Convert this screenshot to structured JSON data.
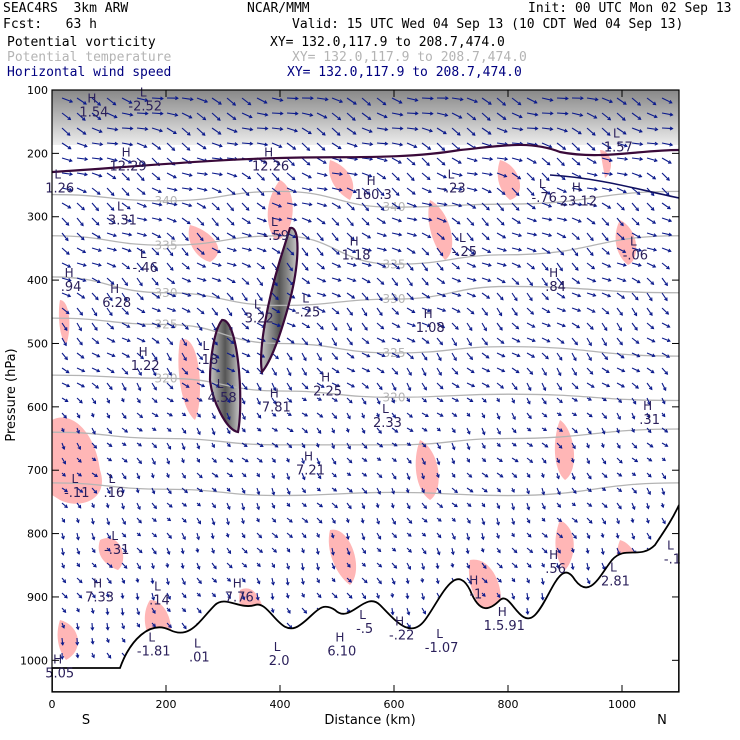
{
  "header": {
    "model": "SEAC4RS  3km ARW",
    "forecast": "Fcst:   63 h",
    "center": "NCAR/MMM",
    "init": "Init: 00 UTC Mon 02 Sep 13",
    "valid": "Valid: 15 UTC Wed 04 Sep 13 (10 CDT Wed 04 Sep 13)"
  },
  "fields": [
    {
      "label": "Potential vorticity",
      "xy": "XY= 132.0,117.9 to 208.7,474.0",
      "color": "#000000"
    },
    {
      "label": "Potential temperature",
      "xy": "XY= 132.0,117.9 to 208.7,474.0",
      "color": "#b4b4b4"
    },
    {
      "label": "Horizontal wind speed",
      "xy": "XY= 132.0,117.9 to 208.7,474.0",
      "color": "#000080"
    }
  ],
  "chart_data": {
    "type": "contour",
    "xlabel": "Distance (km)",
    "ylabel": "Pressure (hPa)",
    "xlim": [
      0,
      1100
    ],
    "ylim": [
      1050,
      100
    ],
    "x_ticks": [
      0,
      200,
      400,
      600,
      800,
      1000
    ],
    "y_ticks": [
      100,
      200,
      300,
      400,
      500,
      600,
      700,
      800,
      900,
      1000
    ],
    "side_labels": {
      "left": "S",
      "right": "N"
    },
    "colors": {
      "pv_contour": "#3a0a3a",
      "theta": "#b4b4b4",
      "wind": "#0b1a8c",
      "shade_pink": "#ffb6b6",
      "terrain": "#000000"
    },
    "theta_contours": [
      {
        "label": "340",
        "points": [
          [
            0,
            265
          ],
          [
            200,
            275
          ],
          [
            400,
            260
          ],
          [
            600,
            285
          ],
          [
            800,
            280
          ],
          [
            1100,
            260
          ]
        ]
      },
      {
        "label": "335",
        "points": [
          [
            0,
            330
          ],
          [
            200,
            345
          ],
          [
            400,
            330
          ],
          [
            600,
            375
          ],
          [
            800,
            360
          ],
          [
            1100,
            330
          ]
        ]
      },
      {
        "label": "330",
        "points": [
          [
            0,
            395
          ],
          [
            200,
            420
          ],
          [
            400,
            440
          ],
          [
            600,
            430
          ],
          [
            800,
            410
          ],
          [
            1100,
            420
          ]
        ]
      },
      {
        "label": "325",
        "points": [
          [
            0,
            460
          ],
          [
            200,
            470
          ],
          [
            400,
            500
          ],
          [
            600,
            515
          ],
          [
            800,
            505
          ],
          [
            1100,
            520
          ]
        ]
      },
      {
        "label": "320",
        "points": [
          [
            0,
            550
          ],
          [
            200,
            555
          ],
          [
            400,
            575
          ],
          [
            600,
            585
          ],
          [
            800,
            580
          ],
          [
            1100,
            590
          ]
        ]
      },
      {
        "label": "",
        "points": [
          [
            0,
            640
          ],
          [
            200,
            650
          ],
          [
            400,
            660
          ],
          [
            600,
            660
          ],
          [
            800,
            650
          ],
          [
            1100,
            635
          ]
        ]
      },
      {
        "label": "",
        "points": [
          [
            0,
            720
          ],
          [
            200,
            730
          ],
          [
            400,
            740
          ],
          [
            600,
            735
          ],
          [
            800,
            740
          ],
          [
            1100,
            720
          ]
        ]
      }
    ],
    "extrema": [
      {
        "x": 70,
        "p": 120,
        "kind": "H",
        "value": "1.54"
      },
      {
        "x": 160,
        "p": 110,
        "kind": "L",
        "value": "-2.52"
      },
      {
        "x": 130,
        "p": 205,
        "kind": "H",
        "value": "12.29"
      },
      {
        "x": 380,
        "p": 205,
        "kind": "H",
        "value": "12.26"
      },
      {
        "x": 10,
        "p": 240,
        "kind": "L",
        "value": "1.26"
      },
      {
        "x": 560,
        "p": 250,
        "kind": "H",
        "value": "160.3"
      },
      {
        "x": 700,
        "p": 240,
        "kind": "L",
        "value": "-.23"
      },
      {
        "x": 860,
        "p": 255,
        "kind": "L",
        "value": "-.76"
      },
      {
        "x": 920,
        "p": 260,
        "kind": "H",
        "value": "23.12"
      },
      {
        "x": 990,
        "p": 175,
        "kind": "L",
        "value": "1.57"
      },
      {
        "x": 120,
        "p": 290,
        "kind": "L",
        "value": "3.31"
      },
      {
        "x": 390,
        "p": 315,
        "kind": "L",
        "value": "-.59"
      },
      {
        "x": 530,
        "p": 345,
        "kind": "H",
        "value": "1.18"
      },
      {
        "x": 720,
        "p": 340,
        "kind": "L",
        "value": "-.25"
      },
      {
        "x": 1020,
        "p": 345,
        "kind": "L",
        "value": "-.06"
      },
      {
        "x": 160,
        "p": 365,
        "kind": "L",
        "value": "-.46"
      },
      {
        "x": 30,
        "p": 395,
        "kind": "H",
        "value": ".94"
      },
      {
        "x": 110,
        "p": 420,
        "kind": "H",
        "value": "6.28"
      },
      {
        "x": 445,
        "p": 435,
        "kind": "L",
        "value": "-.25"
      },
      {
        "x": 880,
        "p": 395,
        "kind": "H",
        "value": ".84"
      },
      {
        "x": 360,
        "p": 445,
        "kind": "L",
        "value": "3.22"
      },
      {
        "x": 660,
        "p": 460,
        "kind": "H",
        "value": "1.08"
      },
      {
        "x": 270,
        "p": 510,
        "kind": "L",
        "value": ".18"
      },
      {
        "x": 160,
        "p": 520,
        "kind": "H",
        "value": "1.22"
      },
      {
        "x": 480,
        "p": 560,
        "kind": "H",
        "value": "2.25"
      },
      {
        "x": 295,
        "p": 570,
        "kind": "L",
        "value": "4.58"
      },
      {
        "x": 390,
        "p": 585,
        "kind": "H",
        "value": "7.81"
      },
      {
        "x": 585,
        "p": 610,
        "kind": "L",
        "value": "2.33"
      },
      {
        "x": 1045,
        "p": 605,
        "kind": "H",
        "value": ".31"
      },
      {
        "x": 450,
        "p": 685,
        "kind": "H",
        "value": "7.21"
      },
      {
        "x": 40,
        "p": 720,
        "kind": "L",
        "value": "-.11"
      },
      {
        "x": 105,
        "p": 720,
        "kind": "L",
        "value": ".16"
      },
      {
        "x": 110,
        "p": 810,
        "kind": "L",
        "value": "-.31"
      },
      {
        "x": 80,
        "p": 885,
        "kind": "H",
        "value": "7.33"
      },
      {
        "x": 185,
        "p": 890,
        "kind": "L",
        "value": ".14"
      },
      {
        "x": 325,
        "p": 885,
        "kind": "H",
        "value": "7.76"
      },
      {
        "x": 880,
        "p": 840,
        "kind": "H",
        "value": ".56"
      },
      {
        "x": 985,
        "p": 860,
        "kind": "L",
        "value": "2.81"
      },
      {
        "x": 1085,
        "p": 825,
        "kind": "L",
        "value": "-.1"
      },
      {
        "x": 175,
        "p": 970,
        "kind": "L",
        "value": "-1.81"
      },
      {
        "x": 255,
        "p": 980,
        "kind": "L",
        "value": ".01"
      },
      {
        "x": 395,
        "p": 985,
        "kind": "L",
        "value": "2.0"
      },
      {
        "x": 505,
        "p": 970,
        "kind": "H",
        "value": "6.10"
      },
      {
        "x": 545,
        "p": 935,
        "kind": "L",
        "value": "-.5"
      },
      {
        "x": 610,
        "p": 945,
        "kind": "H",
        "value": "-.22"
      },
      {
        "x": 680,
        "p": 965,
        "kind": "L",
        "value": "-1.07"
      },
      {
        "x": 790,
        "p": 930,
        "kind": "H",
        "value": "1.5.91"
      },
      {
        "x": 740,
        "p": 880,
        "kind": "H",
        "value": "-1"
      },
      {
        "x": 10,
        "p": 1005,
        "kind": "H",
        "value": "5.05"
      }
    ]
  }
}
